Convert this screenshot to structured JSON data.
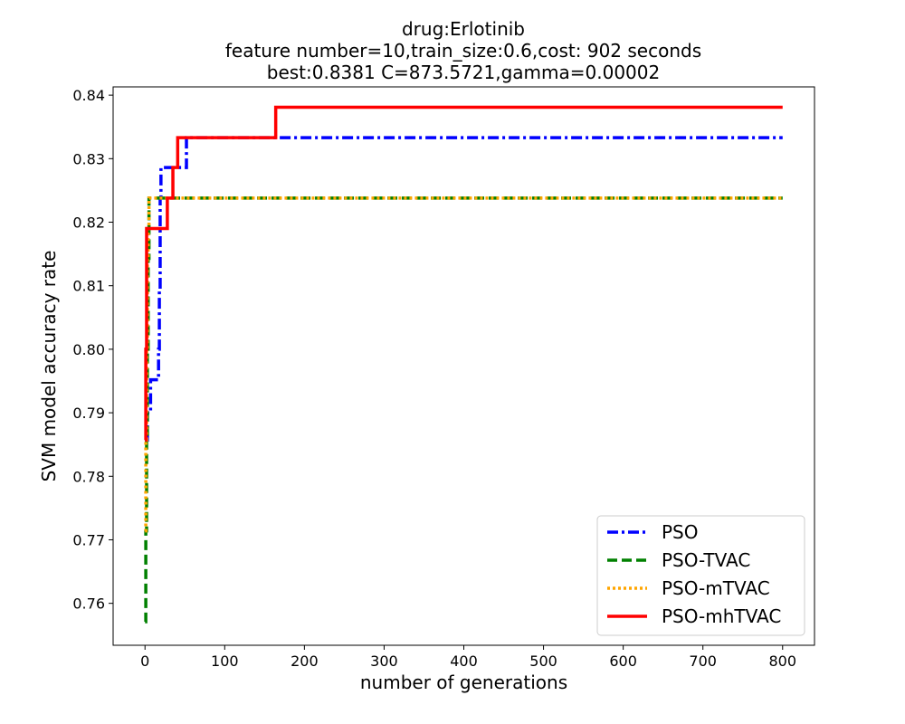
{
  "chart_data": {
    "type": "line",
    "title_lines": [
      "drug:Erlotinib",
      "feature number=10,train_size:0.6,cost: 902 seconds",
      "best:0.8381  C=873.5721,gamma=0.00002"
    ],
    "xlabel": "number of generations",
    "ylabel": "SVM model accuracy rate",
    "xlim": [
      -40,
      840
    ],
    "ylim": [
      0.7534,
      0.8413
    ],
    "xticks": [
      0,
      100,
      200,
      300,
      400,
      500,
      600,
      700,
      800
    ],
    "yticks": [
      0.76,
      0.77,
      0.78,
      0.79,
      0.8,
      0.81,
      0.82,
      0.83,
      0.84
    ],
    "ytick_labels": [
      "0.76",
      "0.77",
      "0.78",
      "0.79",
      "0.80",
      "0.81",
      "0.82",
      "0.83",
      "0.84"
    ],
    "grid": false,
    "legend_position": "lower-right",
    "series": [
      {
        "name": "PSO",
        "color": "#0000ff",
        "style": "dashdot",
        "x": [
          0,
          1,
          2,
          3,
          4,
          5,
          6,
          7,
          8,
          9,
          10,
          11,
          12,
          13,
          14,
          15,
          16,
          17,
          18,
          19,
          20,
          50,
          51,
          52,
          800
        ],
        "y": [
          0.7857,
          0.7857,
          0.7857,
          0.79,
          0.79,
          0.79,
          0.79,
          0.7952,
          0.7952,
          0.7952,
          0.7952,
          0.7952,
          0.7952,
          0.7952,
          0.7952,
          0.7952,
          0.7952,
          0.8,
          0.8095,
          0.8238,
          0.8286,
          0.8286,
          0.8286,
          0.8333,
          0.8333
        ]
      },
      {
        "name": "PSO-TVAC",
        "color": "#008000",
        "style": "dashed",
        "x": [
          0,
          1,
          2,
          3,
          4,
          5,
          800
        ],
        "y": [
          0.7571,
          0.7714,
          0.7857,
          0.8,
          0.8143,
          0.8238,
          0.8238
        ]
      },
      {
        "name": "PSO-mTVAC",
        "color": "#ffa500",
        "style": "dotted",
        "x": [
          0,
          1,
          2,
          3,
          4,
          5,
          800
        ],
        "y": [
          0.7714,
          0.7857,
          0.8,
          0.8143,
          0.819,
          0.8238,
          0.8238
        ]
      },
      {
        "name": "PSO-mhTVAC",
        "color": "#ff0000",
        "style": "solid",
        "x": [
          0,
          1,
          2,
          3,
          27,
          28,
          30,
          34,
          35,
          37,
          38,
          40,
          41,
          163,
          164,
          800
        ],
        "y": [
          0.7857,
          0.8,
          0.819,
          0.819,
          0.819,
          0.8238,
          0.8238,
          0.8238,
          0.8286,
          0.8286,
          0.8286,
          0.8286,
          0.8333,
          0.8333,
          0.8381,
          0.8381
        ]
      }
    ]
  }
}
